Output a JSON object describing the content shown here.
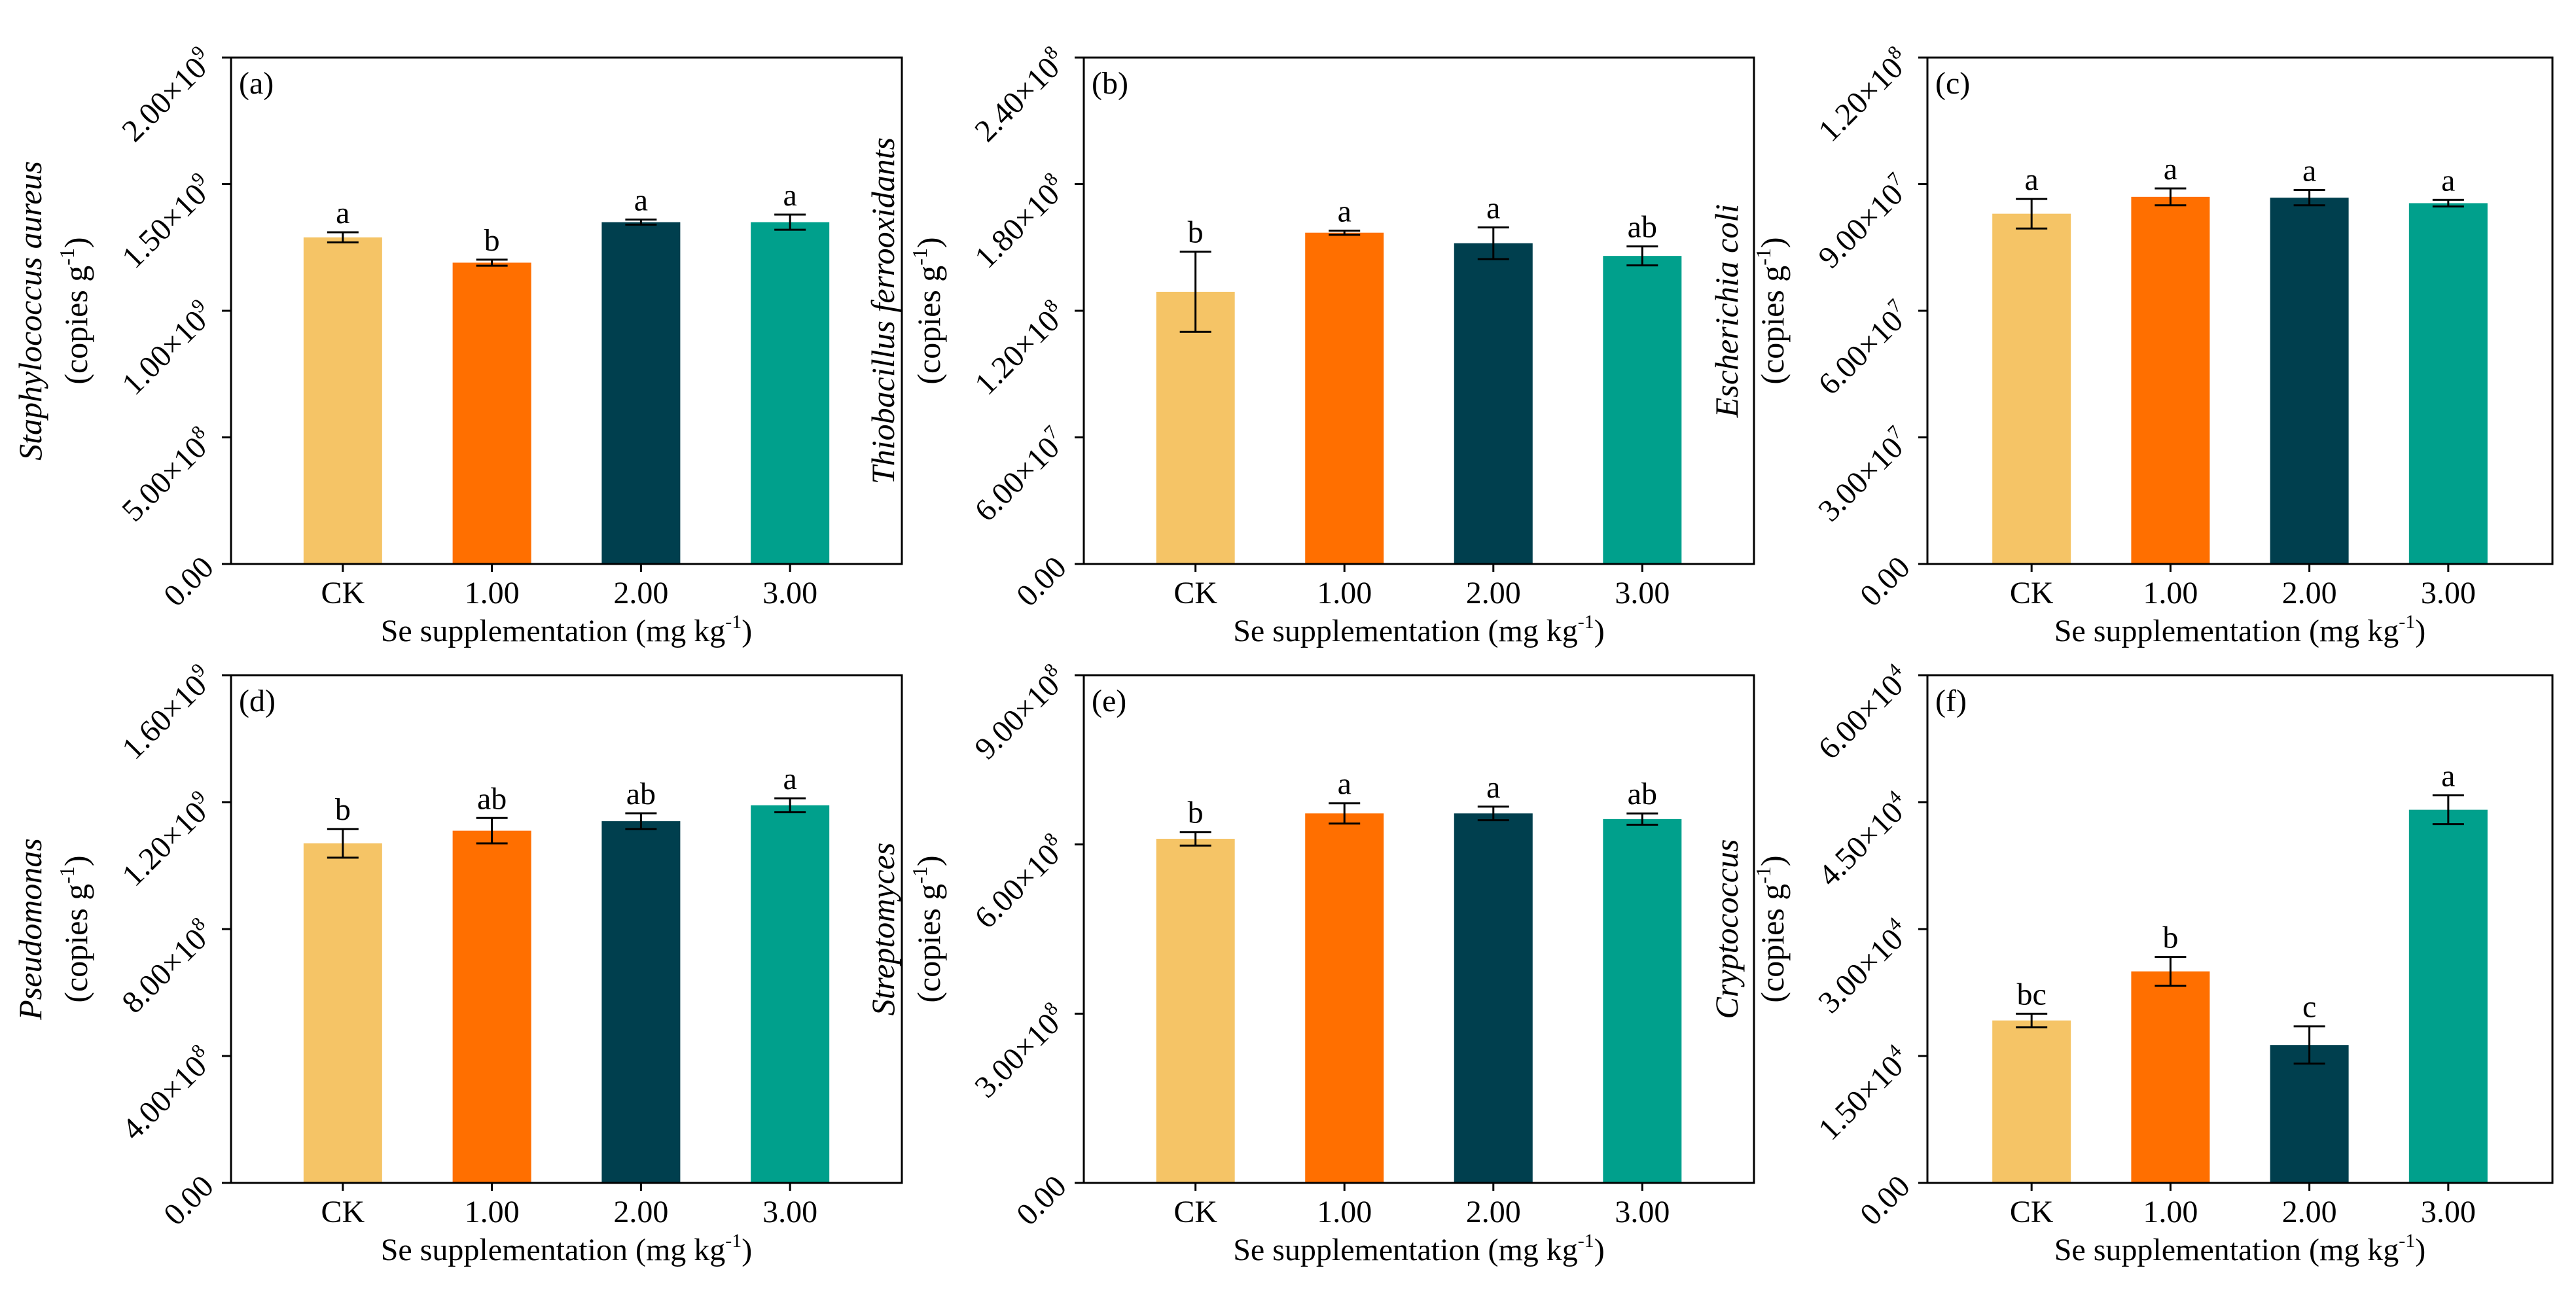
{
  "figure": {
    "x_title_prefix": "Se supplementation (mg kg",
    "x_title_sup": "-1",
    "x_title_suffix": ")",
    "units_prefix": "(copies g",
    "units_sup": "-1",
    "units_suffix": ")",
    "times_symbol": "×",
    "colors": [
      "#F5C466",
      "#FF6F00",
      "#003F4E",
      "#00A08C"
    ]
  },
  "chart_data": [
    {
      "type": "bar",
      "panel": "(a)",
      "title": "",
      "ylabel": "Staphylococcus aureus",
      "categories": [
        "CK",
        "1.00",
        "2.00",
        "3.00"
      ],
      "values": [
        1290000000.0,
        1190000000.0,
        1350000000.0,
        1350000000.0
      ],
      "errors": [
        20000000.0,
        12000000.0,
        10000000.0,
        30000000.0
      ],
      "letters": [
        "a",
        "b",
        "a",
        "a"
      ],
      "ylim": [
        0,
        2000000000.0
      ],
      "yticks": [
        {
          "value": 0,
          "mantissa": "0.00",
          "exponent": ""
        },
        {
          "value": 500000000.0,
          "mantissa": "5.00",
          "exponent": "8"
        },
        {
          "value": 1000000000.0,
          "mantissa": "1.00",
          "exponent": "9"
        },
        {
          "value": 1500000000.0,
          "mantissa": "1.50",
          "exponent": "9"
        },
        {
          "value": 2000000000.0,
          "mantissa": "2.00",
          "exponent": "9"
        }
      ]
    },
    {
      "type": "bar",
      "panel": "(b)",
      "title": "",
      "ylabel": "Thiobacillus ferrooxidants",
      "categories": [
        "CK",
        "1.00",
        "2.00",
        "3.00"
      ],
      "values": [
        129000000.0,
        157000000.0,
        152000000.0,
        146000000.0
      ],
      "errors": [
        19000000.0,
        1000000.0,
        7500000.0,
        4500000.0
      ],
      "letters": [
        "b",
        "a",
        "a",
        "ab"
      ],
      "ylim": [
        0,
        240000000.0
      ],
      "yticks": [
        {
          "value": 0,
          "mantissa": "0.00",
          "exponent": ""
        },
        {
          "value": 60000000.0,
          "mantissa": "6.00",
          "exponent": "7"
        },
        {
          "value": 120000000.0,
          "mantissa": "1.20",
          "exponent": "8"
        },
        {
          "value": 180000000.0,
          "mantissa": "1.80",
          "exponent": "8"
        },
        {
          "value": 240000000.0,
          "mantissa": "2.40",
          "exponent": "8"
        }
      ]
    },
    {
      "type": "bar",
      "panel": "(c)",
      "title": "",
      "ylabel": "Escherichia coli",
      "categories": [
        "CK",
        "1.00",
        "2.00",
        "3.00"
      ],
      "values": [
        83000000.0,
        87000000.0,
        86800000.0,
        85500000.0
      ],
      "errors": [
        3500000.0,
        2000000.0,
        1800000.0,
        800000.0
      ],
      "letters": [
        "a",
        "a",
        "a",
        "a"
      ],
      "ylim": [
        0,
        120000000.0
      ],
      "yticks": [
        {
          "value": 0,
          "mantissa": "0.00",
          "exponent": ""
        },
        {
          "value": 30000000.0,
          "mantissa": "3.00",
          "exponent": "7"
        },
        {
          "value": 60000000.0,
          "mantissa": "6.00",
          "exponent": "7"
        },
        {
          "value": 90000000.0,
          "mantissa": "9.00",
          "exponent": "7"
        },
        {
          "value": 120000000.0,
          "mantissa": "1.20",
          "exponent": "8"
        }
      ]
    },
    {
      "type": "bar",
      "panel": "(d)",
      "title": "",
      "ylabel": "Pseudomonas",
      "categories": [
        "CK",
        "1.00",
        "2.00",
        "3.00"
      ],
      "values": [
        1070000000.0,
        1110000000.0,
        1140000000.0,
        1190000000.0
      ],
      "errors": [
        45000000.0,
        40000000.0,
        25000000.0,
        22000000.0
      ],
      "letters": [
        "b",
        "ab",
        "ab",
        "a"
      ],
      "ylim": [
        0,
        1600000000.0
      ],
      "yticks": [
        {
          "value": 0,
          "mantissa": "0.00",
          "exponent": ""
        },
        {
          "value": 400000000.0,
          "mantissa": "4.00",
          "exponent": "8"
        },
        {
          "value": 800000000.0,
          "mantissa": "8.00",
          "exponent": "8"
        },
        {
          "value": 1200000000.0,
          "mantissa": "1.20",
          "exponent": "9"
        },
        {
          "value": 1600000000.0,
          "mantissa": "1.60",
          "exponent": "9"
        }
      ]
    },
    {
      "type": "bar",
      "panel": "(e)",
      "title": "",
      "ylabel": "Streptomyces",
      "categories": [
        "CK",
        "1.00",
        "2.00",
        "3.00"
      ],
      "values": [
        610000000.0,
        655000000.0,
        655000000.0,
        645000000.0
      ],
      "errors": [
        12000000.0,
        18000000.0,
        12000000.0,
        10000000.0
      ],
      "letters": [
        "b",
        "a",
        "a",
        "ab"
      ],
      "ylim": [
        0,
        900000000.0
      ],
      "yticks": [
        {
          "value": 0,
          "mantissa": "0.00",
          "exponent": ""
        },
        {
          "value": 300000000.0,
          "mantissa": "3.00",
          "exponent": "8"
        },
        {
          "value": 600000000.0,
          "mantissa": "6.00",
          "exponent": "8"
        },
        {
          "value": 900000000.0,
          "mantissa": "9.00",
          "exponent": "8"
        }
      ]
    },
    {
      "type": "bar",
      "panel": "(f)",
      "title": "",
      "ylabel": "Cryptococcus",
      "categories": [
        "CK",
        "1.00",
        "2.00",
        "3.00"
      ],
      "values": [
        19200.0,
        25000.0,
        16300.0,
        44100.0
      ],
      "errors": [
        800.0,
        1700.0,
        2200.0,
        1700.0
      ],
      "letters": [
        "bc",
        "b",
        "c",
        "a"
      ],
      "ylim": [
        0,
        60000.0
      ],
      "yticks": [
        {
          "value": 0,
          "mantissa": "0.00",
          "exponent": ""
        },
        {
          "value": 15000.0,
          "mantissa": "1.50",
          "exponent": "4"
        },
        {
          "value": 30000.0,
          "mantissa": "3.00",
          "exponent": "4"
        },
        {
          "value": 45000.0,
          "mantissa": "4.50",
          "exponent": "4"
        },
        {
          "value": 60000.0,
          "mantissa": "6.00",
          "exponent": "4"
        }
      ]
    }
  ]
}
